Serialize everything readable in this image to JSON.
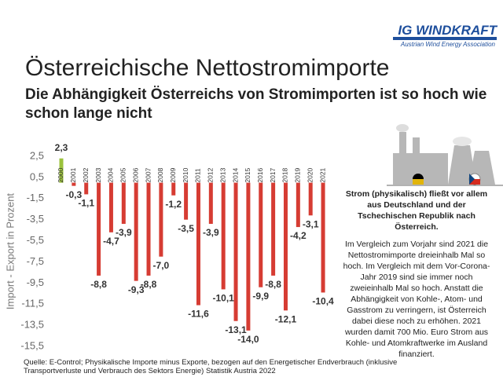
{
  "header": {
    "logo": "IG WINDKRAFT",
    "tagline": "Austrian Wind Energy Association"
  },
  "slide": {
    "title": "Österreichische Nettostromimporte",
    "subtitle": "Die Abhängigkeit Österreichs von Stromimporten ist so hoch wie schon lange nicht"
  },
  "note": {
    "heading": "Strom (physikalisch) fließt vor allem aus Deutschland und der Tschechischen Republik nach Österreich.",
    "body": "Im Vergleich zum Vorjahr sind 2021 die Nettostromimporte dreieinhalb Mal so hoch. Im Vergleich mit dem Vor-Corona-Jahr 2019 sind sie immer noch zweieinhalb Mal so hoch. Anstatt die Abhängigkeit von Kohle-, Atom- und Gasstrom zu verringern, ist Österreich dabei diese noch zu erhöhen. 2021 wurden damit 700 Mio. Euro Strom aus Kohle- und Atomkraftwerke im Ausland finanziert."
  },
  "source": "Quelle: E-Control; Physikalische Importe minus Exporte, bezogen auf den Energetischer Endverbrauch (inklusive Transportverluste und Verbrauch des Sektors Energie) Statistik Austria 2022",
  "chart_data": {
    "type": "bar",
    "y_label": "Import - Export in Prozent",
    "categories": [
      "2000",
      "2001",
      "2002",
      "2003",
      "2004",
      "2005",
      "2006",
      "2007",
      "2008",
      "2009",
      "2010",
      "2011",
      "2012",
      "2013",
      "2014",
      "2015",
      "2016",
      "2017",
      "2018",
      "2019",
      "2020",
      "2021"
    ],
    "values": [
      2.3,
      -0.3,
      -1.1,
      -8.8,
      -4.7,
      -3.9,
      -9.3,
      -8.8,
      -7.0,
      -1.2,
      -3.5,
      -11.6,
      -3.9,
      -10.1,
      -13.1,
      -14.0,
      -9.9,
      -8.8,
      -12.1,
      -4.2,
      -3.1,
      -10.4
    ],
    "value_labels": [
      "2,3",
      "-0,3",
      "-1,1",
      "-8,8",
      "-4,7",
      "-3,9",
      "-9,3",
      "-8,8",
      "-7,0",
      "-1,2",
      "-3,5",
      "-11,6",
      "-3,9",
      "-10,1",
      "-13,1",
      "-14,0",
      "-9,9",
      "-8,8",
      "-12,1",
      "-4,2",
      "-3,1",
      "-10,4"
    ],
    "colors": [
      "#9bc23c",
      "#d63c33",
      "#d63c33",
      "#d63c33",
      "#d63c33",
      "#d63c33",
      "#d63c33",
      "#d63c33",
      "#d63c33",
      "#d63c33",
      "#d63c33",
      "#d63c33",
      "#d63c33",
      "#d63c33",
      "#d63c33",
      "#d63c33",
      "#d63c33",
      "#d63c33",
      "#d63c33",
      "#d63c33",
      "#d63c33",
      "#d63c33"
    ],
    "ylim": [
      -15.5,
      2.5
    ],
    "yticks": [
      {
        "value": 2.5,
        "label": "2,5"
      },
      {
        "value": 0.5,
        "label": "0,5"
      },
      {
        "value": -1.5,
        "label": "-1,5"
      },
      {
        "value": -3.5,
        "label": "-3,5"
      },
      {
        "value": -5.5,
        "label": "-5,5"
      },
      {
        "value": -7.5,
        "label": "-7,5"
      },
      {
        "value": -9.5,
        "label": "-9,5"
      },
      {
        "value": -11.5,
        "label": "-11,5"
      },
      {
        "value": -13.5,
        "label": "-13,5"
      },
      {
        "value": -15.5,
        "label": "-15,5"
      }
    ],
    "grid": false
  }
}
